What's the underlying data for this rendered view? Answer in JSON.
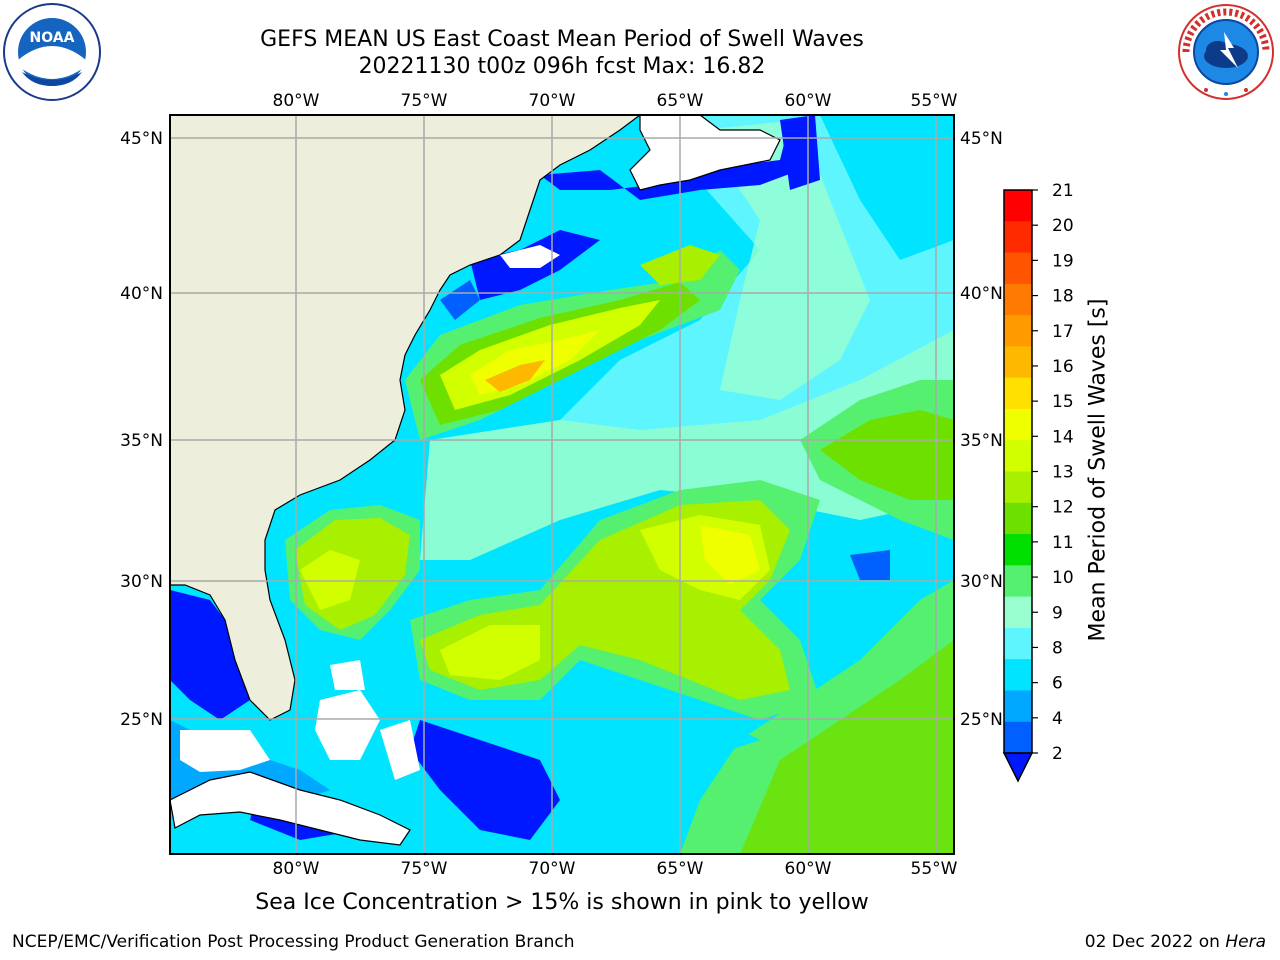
{
  "header": {
    "title_line1": "GEFS MEAN US East Coast Mean Period of Swell Waves",
    "title_line2": "20221130 t00z 096h fcst   Max: 16.82"
  },
  "logos": {
    "left": {
      "icon": "noaa-logo",
      "text": "NOAA"
    },
    "right": {
      "icon": "national-weather-service-logo",
      "text": "NATIONAL WEATHER SERVICE"
    }
  },
  "map": {
    "lon_labels": [
      "80°W",
      "75°W",
      "70°W",
      "65°W",
      "60°W",
      "55°W"
    ],
    "lat_labels": [
      "45°N",
      "40°N",
      "35°N",
      "30°N",
      "25°N"
    ],
    "colors": {
      "land": "#eeeedc",
      "ocean_bg": "#00e4ff",
      "gridline": "#aaaaaa"
    }
  },
  "colorbar": {
    "title": "Mean Period of Swell Waves [s]",
    "ticks": [
      "21",
      "20",
      "19",
      "18",
      "17",
      "16",
      "15",
      "14",
      "13",
      "12",
      "11",
      "10",
      "9",
      "8",
      "6",
      "4",
      "2"
    ],
    "colors_top_to_bottom": [
      "#ff0000",
      "#ff2a00",
      "#ff5400",
      "#ff7a00",
      "#ff9a00",
      "#ffb800",
      "#ffe000",
      "#f0ff00",
      "#d2ff00",
      "#a8f000",
      "#6ee000",
      "#00e000",
      "#55f070",
      "#9affd0",
      "#5ff5ff",
      "#00e4ff",
      "#00a8ff",
      "#0060ff"
    ],
    "extend_color": "#0018ff"
  },
  "footer": {
    "note": "Sea Ice Concentration > 15% is shown in pink to yellow",
    "left": "NCEP/EMC/Verification Post Processing Product Generation Branch",
    "right_date": "02 Dec 2022 on ",
    "right_host": "Hera"
  }
}
